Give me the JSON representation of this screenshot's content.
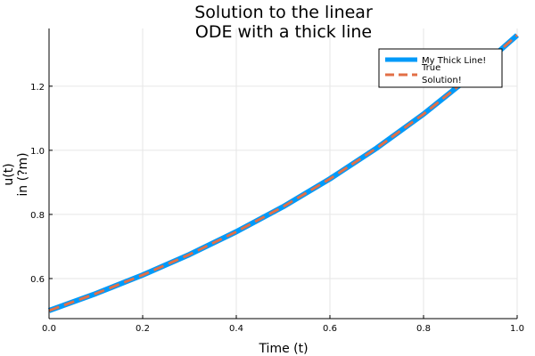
{
  "chart_data": {
    "type": "line",
    "title": [
      "Solution to the linear",
      "ODE with a thick line"
    ],
    "xlabel": "Time (t)",
    "ylabel": [
      "u(t)",
      "in (?m)"
    ],
    "xlim": [
      0.0,
      1.0
    ],
    "ylim": [
      0.475,
      1.38
    ],
    "xticks": [
      0.0,
      0.2,
      0.4,
      0.6,
      0.8,
      1.0
    ],
    "xtick_labels": [
      "0.0",
      "0.2",
      "0.4",
      "0.6",
      "0.8",
      "1.0"
    ],
    "yticks": [
      0.6,
      0.8,
      1.0,
      1.2
    ],
    "ytick_labels": [
      "0.6",
      "0.8",
      "1.0",
      "1.2"
    ],
    "grid": true,
    "legend_position": "top-right",
    "series": [
      {
        "name": "My Thick Line!",
        "color": "#009af9",
        "style": "solid",
        "x": [
          0.0,
          0.1,
          0.2,
          0.3,
          0.4,
          0.5,
          0.6,
          0.7,
          0.8,
          0.9,
          1.0
        ],
        "values": [
          0.5,
          0.553,
          0.611,
          0.675,
          0.746,
          0.824,
          0.911,
          1.007,
          1.113,
          1.23,
          1.359
        ]
      },
      {
        "name": "True\nSolution!",
        "color": "#e26f46",
        "style": "dashed",
        "x": [
          0.0,
          0.1,
          0.2,
          0.3,
          0.4,
          0.5,
          0.6,
          0.7,
          0.8,
          0.9,
          1.0
        ],
        "values": [
          0.5,
          0.553,
          0.611,
          0.675,
          0.746,
          0.824,
          0.911,
          1.007,
          1.113,
          1.23,
          1.359
        ]
      }
    ]
  }
}
